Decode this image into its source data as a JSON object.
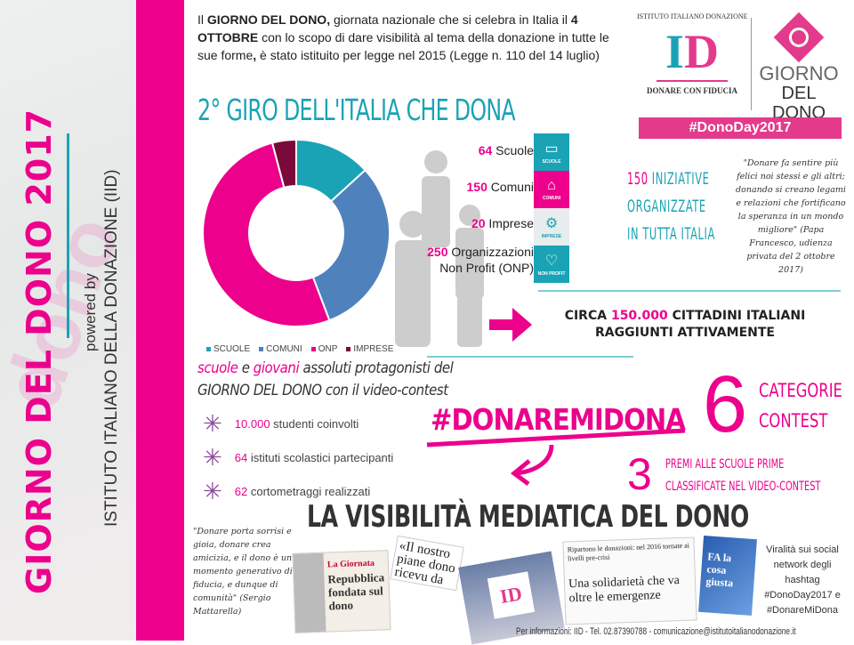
{
  "sidebar": {
    "title": "GIORNO DEL DONO 2017",
    "powered_by": "powered by",
    "institute": "ISTITUTO ITALIANO DELLA DONAZIONE (IID)"
  },
  "intro": {
    "p1": "Il ",
    "b1": "GIORNO DEL DONO,",
    "p2": " giornata nazionale che si celebra in Italia il ",
    "b2": "4 OTTOBRE",
    "p3": " con lo scopo di dare visibilità al tema della donazione in tutte le sue forme",
    "b3": ",",
    "p4": " è stato istituito per legge nel 2015 (Legge n. 110 del 14 luglio)"
  },
  "logos": {
    "iid_arc": "ISTITUTO ITALIANO DONAZIONE",
    "iid_mark": "ID",
    "iid_tagline": "DONARE CON FIDUCIA",
    "gdd_line1": "GIORNO",
    "gdd_line2": "DEL DONO",
    "hashtag": "#DonoDay2017"
  },
  "giro_title": "2° GIRO DELL'ITALIA CHE DONA",
  "chart_data": {
    "type": "pie",
    "variant": "donut",
    "categories": [
      "SCUOLE",
      "COMUNI",
      "ONP",
      "IMPRESE"
    ],
    "values": [
      64,
      150,
      250,
      20
    ],
    "colors": [
      "#1aa3b5",
      "#4f81bd",
      "#ec008c",
      "#7a0a3a"
    ],
    "legend": "bottom"
  },
  "stats": [
    {
      "num": "64",
      "label": " Scuole",
      "icon": "book-icon",
      "icon_label": "SCUOLE",
      "color": "#1aa3b5"
    },
    {
      "num": "150",
      "label": " Comuni",
      "icon": "building-icon",
      "icon_label": "COMUNI",
      "color": "#ec008c"
    },
    {
      "num": "20",
      "label": " Imprese",
      "icon": "gears-icon",
      "icon_label": "IMPRESE",
      "color": "#e9ecec"
    },
    {
      "num": "250",
      "label": " Organizzazioni",
      "label2": "Non Profit (ONP)",
      "icon": "heart-icon",
      "icon_label": "NON PROFIT",
      "color": "#1aa3b5"
    }
  ],
  "iniziative": {
    "num": "150",
    "l1": " INIZIATIVE",
    "l2": "ORGANIZZATE",
    "l3": "IN TUTTA ITALIA"
  },
  "papa_quote": "\"Donare fa sentire più felici noi stessi e gli altri; donando si creano legami e relazioni che fortificano la speranza in un mondo migliore\" (Papa Francesco, udienza privata del 2 ottobre 2017)",
  "circa": {
    "pre": "CIRCA ",
    "num": "150.000",
    "post": " CITTADINI ITALIANI",
    "line2": "RAGGIUNTI ATTIVAMENTE"
  },
  "scuole_giovani": {
    "w1": "scuole",
    "w2": " e ",
    "w3": "giovani",
    "w4": " assoluti protagonisti del",
    "line2": "GIORNO DEL DONO con il video-contest"
  },
  "bullets": [
    {
      "num": "10.000",
      "text": " studenti coinvolti"
    },
    {
      "num": "64",
      "text": " istituti scolastici partecipanti"
    },
    {
      "num": "62",
      "text": " cortometraggi realizzati"
    }
  ],
  "contest": {
    "hashtag": "#DONAREMIDONA",
    "six": "6",
    "cat1": "CATEGORIE",
    "cat2": "CONTEST",
    "three": "3",
    "premi1": "PREMI ALLE SCUOLE PRIME",
    "premi2": "CLASSIFICATE NEL VIDEO-CONTEST"
  },
  "visibility_title": "LA VISIBILITÀ MEDIATICA DEL DONO",
  "mattarella_quote": "\"Donare porta sorrisi e gioia, donare crea amicizia, e il dono è un momento generativo di fiducia, e dunque di comunità\" (Sergio Mattarella)",
  "clippings": {
    "c1_head": "La Giornata",
    "c1_title": "Repubblica fondata sul dono",
    "c2": "«Il nostro piane dono ricevu da co",
    "c3_top": "Ripartono le donazioni: nel 2016 tornate ai livelli pre-crisi",
    "c3_title": "Una solidarietà che va oltre le emergenze",
    "c4": "FA la cosa giusta"
  },
  "viral": "Viralità sui social network degli hashtag #DonoDay2017 e #DonareMiDona",
  "footer": "Per informazioni: IID - Tel. 02.87390788 - comunicazione@istitutoitalianodonazione.it"
}
